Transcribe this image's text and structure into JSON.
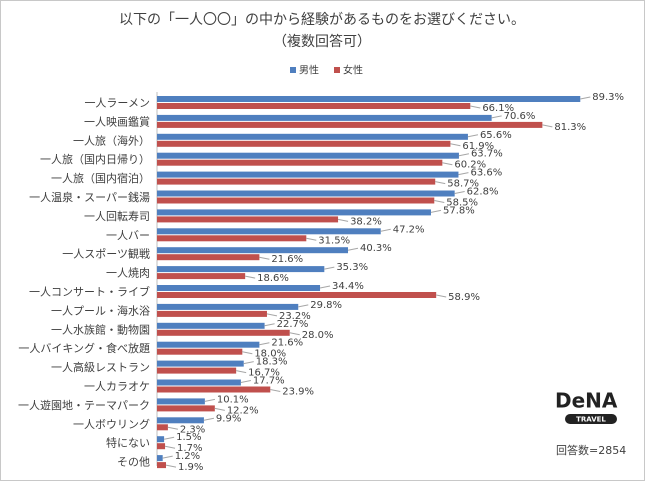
{
  "chart_data": {
    "type": "hbar",
    "title": "以下の「一人〇〇」の中から経験があるものをお選びください。",
    "subtitle": "（複数回答可）",
    "note": "回答数=2854",
    "logo": {
      "brand": "DeNA",
      "sub": "TRAVEL"
    },
    "categories": [
      "一人ラーメン",
      "一人映画鑑賞",
      "一人旅（海外）",
      "一人旅（国内日帰り）",
      "一人旅（国内宿泊）",
      "一人温泉・スーパー銭湯",
      "一人回転寿司",
      "一人バー",
      "一人スポーツ観戦",
      "一人焼肉",
      "一人コンサート・ライブ",
      "一人プール・海水浴",
      "一人水族館・動物園",
      "一人バイキング・食べ放題",
      "一人高級レストラン",
      "一人カラオケ",
      "一人遊園地・テーマパーク",
      "一人ボウリング",
      "特にない",
      "その他"
    ],
    "series": [
      {
        "name": "男性",
        "color": "#4f7fbf",
        "values": [
          89.3,
          70.6,
          65.6,
          63.7,
          63.6,
          62.8,
          57.8,
          47.2,
          40.3,
          35.3,
          34.4,
          29.8,
          22.7,
          21.6,
          18.3,
          17.7,
          10.1,
          9.9,
          1.5,
          1.2
        ],
        "value_labels": [
          "89.3%",
          "70.6%",
          "65.6%",
          "63.7%",
          "63.6%",
          "62.8%",
          "57.8%",
          "47.2%",
          "40.3%",
          "35.3%",
          "34.4%",
          "29.8%",
          "22.7%",
          "21.6%",
          "18.3%",
          "17.7%",
          "10.1%",
          "9.9%",
          "1.5%",
          "1.2%"
        ]
      },
      {
        "name": "女性",
        "color": "#c0504d",
        "values": [
          66.1,
          81.3,
          61.9,
          60.2,
          58.7,
          58.5,
          38.2,
          31.5,
          21.6,
          18.6,
          58.9,
          23.2,
          28.0,
          18.0,
          16.7,
          23.9,
          12.2,
          2.3,
          1.7,
          1.9
        ],
        "value_labels": [
          "66.1%",
          "81.3%",
          "61.9%",
          "60.2%",
          "58.7%",
          "58.5%",
          "38.2%",
          "31.5%",
          "21.6%",
          "18.6%",
          "58.9%",
          "23.2%",
          "28.0%",
          "18.0%",
          "16.7%",
          "23.9%",
          "12.2%",
          "2.3%",
          "1.7%",
          "1.9%"
        ]
      }
    ],
    "xlim": [
      0,
      100
    ]
  }
}
